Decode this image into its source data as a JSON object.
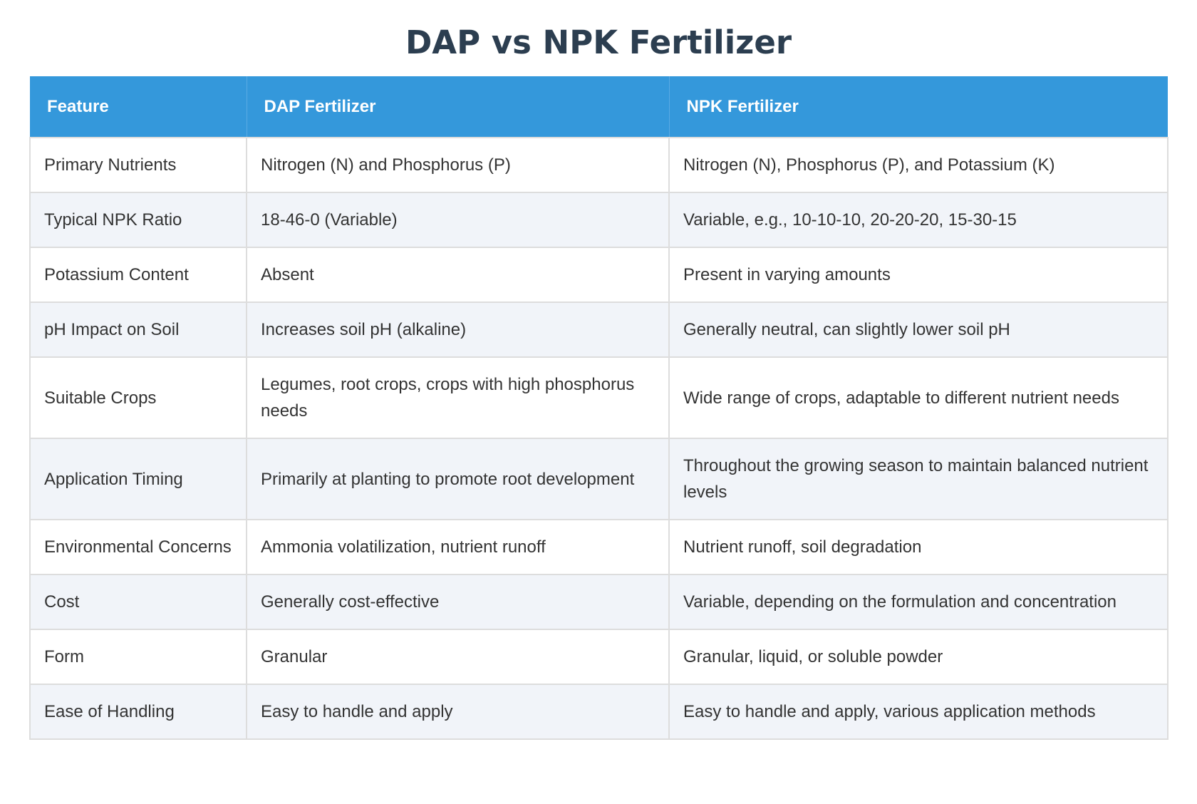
{
  "page": {
    "title": "DAP vs NPK Fertilizer"
  },
  "table": {
    "headers": [
      "Feature",
      "DAP Fertilizer",
      "NPK Fertilizer"
    ],
    "rows": [
      [
        "Primary Nutrients",
        "Nitrogen (N) and Phosphorus (P)",
        "Nitrogen (N), Phosphorus (P), and Potassium (K)"
      ],
      [
        "Typical NPK Ratio",
        "18-46-0 (Variable)",
        "Variable, e.g., 10-10-10, 20-20-20, 15-30-15"
      ],
      [
        "Potassium Content",
        "Absent",
        "Present in varying amounts"
      ],
      [
        "pH Impact on Soil",
        "Increases soil pH (alkaline)",
        "Generally neutral, can slightly lower soil pH"
      ],
      [
        "Suitable Crops",
        "Legumes, root crops, crops with high phosphorus needs",
        "Wide range of crops, adaptable to different nutrient needs"
      ],
      [
        "Application Timing",
        "Primarily at planting to promote root development",
        "Throughout the growing season to maintain balanced nutrient levels"
      ],
      [
        "Environmental Concerns",
        "Ammonia volatilization, nutrient runoff",
        "Nutrient runoff, soil degradation"
      ],
      [
        "Cost",
        "Generally cost-effective",
        "Variable, depending on the formulation and concentration"
      ],
      [
        "Form",
        "Granular",
        "Granular, liquid, or soluble powder"
      ],
      [
        "Ease of Handling",
        "Easy to handle and apply",
        "Easy to handle and apply, various application methods"
      ]
    ]
  },
  "colors": {
    "title": "#2c3e50",
    "header_bg": "#3498db",
    "header_text": "#ffffff",
    "row_alt_bg": "#f1f4f9",
    "border": "#dddddd",
    "body_text": "#333333"
  }
}
